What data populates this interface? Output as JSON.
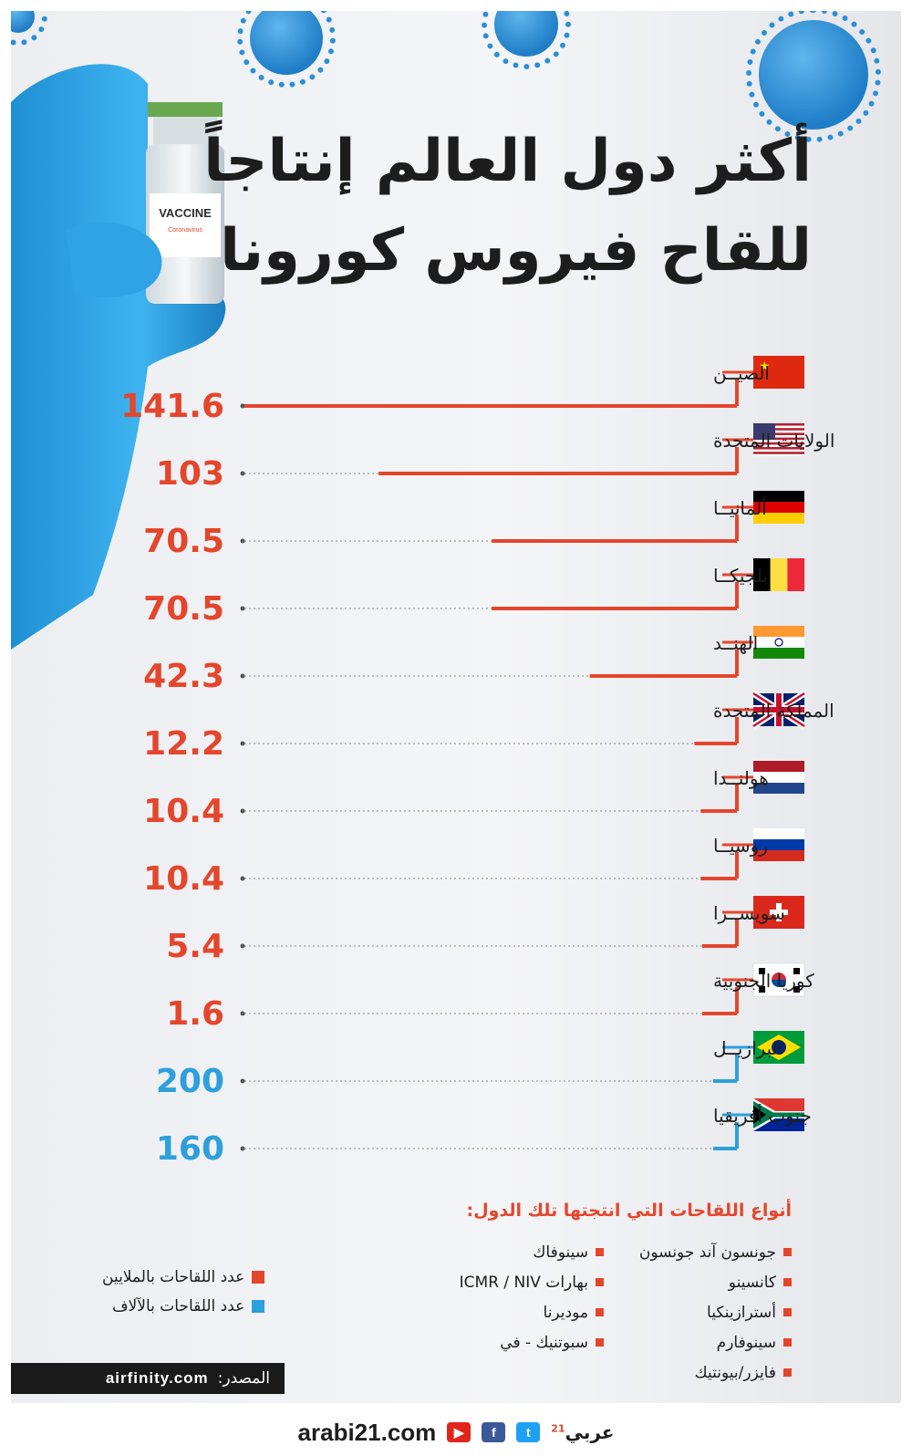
{
  "title": {
    "line1": "أكثر دول العالم إنتاجاً",
    "line2": "للقاح فيروس كورونا"
  },
  "vial": {
    "label": "VACCINE",
    "sublabel": "Coronavirus"
  },
  "colors": {
    "millions": "#e4462c",
    "thousands": "#2d9fdc",
    "text": "#1e1e1e"
  },
  "chart_data": {
    "type": "bar",
    "orientation": "horizontal",
    "categories": [
      "الصيــن",
      "الولايات المتحدة",
      "ألمانيــا",
      "بلجيكــا",
      "الهنــد",
      "المملكة المتحدة",
      "هولنــدا",
      "روسيــا",
      "سويســرا",
      "كوريا الجنوبية",
      "البرازيــل",
      "جنوب أفريقيا"
    ],
    "flags": [
      "china",
      "usa",
      "germany",
      "belgium",
      "india",
      "uk",
      "netherlands",
      "russia",
      "switzerland",
      "south-korea",
      "brazil",
      "south-africa"
    ],
    "series": [
      {
        "name": "عدد اللقاحات بالملايين",
        "values": [
          141.6,
          103,
          70.5,
          70.5,
          42.3,
          12.2,
          10.4,
          10.4,
          5.4,
          1.6,
          null,
          null
        ]
      },
      {
        "name": "عدد اللقاحات بالآلاف",
        "values": [
          null,
          null,
          null,
          null,
          null,
          null,
          null,
          null,
          null,
          null,
          200,
          160
        ]
      }
    ],
    "value_labels": [
      "141.6",
      "103",
      "70.5",
      "70.5",
      "42.3",
      "12.2",
      "10.4",
      "10.4",
      "5.4",
      "1.6",
      "200",
      "160"
    ],
    "unit_flags": [
      "m",
      "m",
      "m",
      "m",
      "m",
      "m",
      "m",
      "m",
      "m",
      "m",
      "k",
      "k"
    ]
  },
  "types": {
    "title": "أنواع اللقاحات التي انتجتها تلك الدول:",
    "col_right": [
      "جونسون آند جونسون",
      "كانسينو",
      "أسترازينكيا",
      "سينوفارم",
      "فايزر/بيونتيك"
    ],
    "col_left": [
      "سينوفاك",
      "بهارات ICMR / NIV",
      "موديرنا",
      "سبوتنيك - في"
    ]
  },
  "legend": {
    "millions": "عدد اللقاحات بالملايين",
    "thousands": "عدد اللقاحات بالآلاف"
  },
  "source": {
    "label": "المصدر:",
    "url": "airfinity.com"
  },
  "footer": {
    "site": "arabi21.com",
    "brand": "عربي",
    "brand_sup": "21"
  }
}
